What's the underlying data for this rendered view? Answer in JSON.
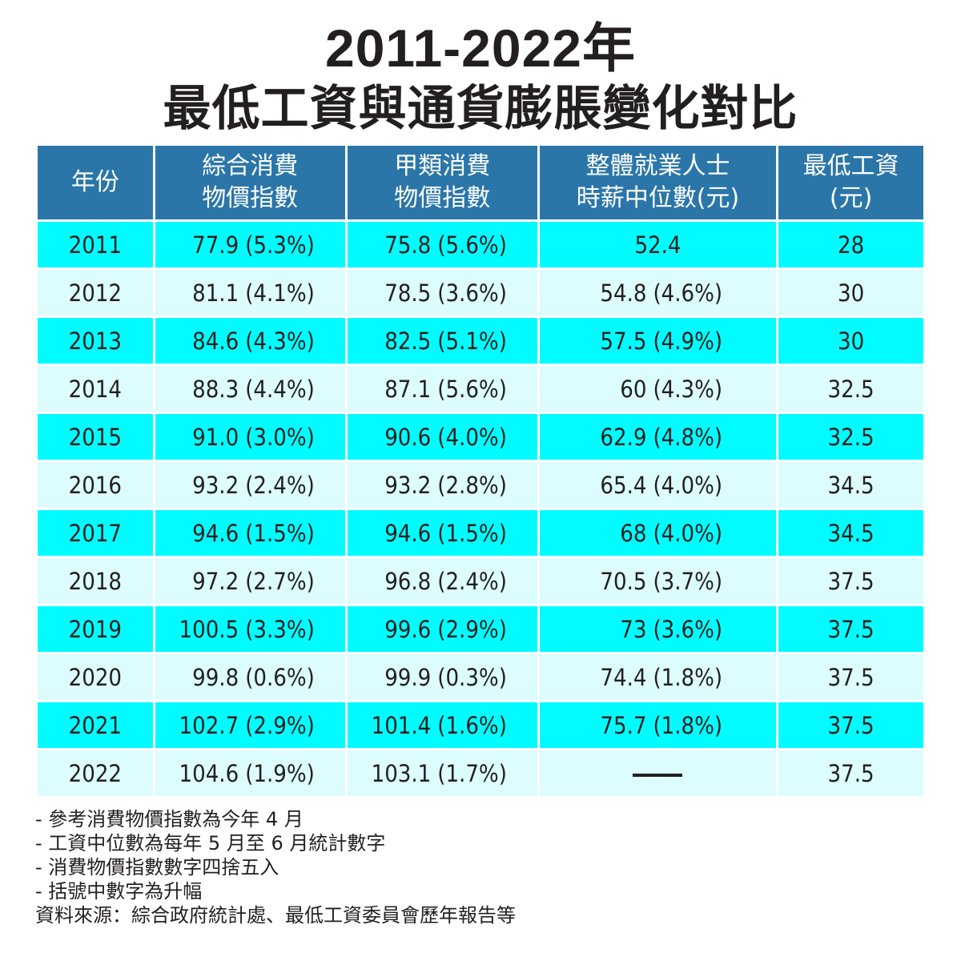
{
  "header": {
    "title_line1": "2011-2022年",
    "title_line2": "最低工資與通貨膨脹變化對比"
  },
  "table": {
    "columns": [
      {
        "line1": "年份",
        "line2": ""
      },
      {
        "line1": "綜合消費",
        "line2": "物價指數"
      },
      {
        "line1": "甲類消費",
        "line2": "物價指數"
      },
      {
        "line1": "整體就業人士",
        "line2": "時薪中位數(元)"
      },
      {
        "line1": "最低工資",
        "line2": "(元)"
      }
    ],
    "rows": [
      {
        "year": "2011",
        "ccpi": "77.9",
        "ccpi_pct": "(5.3%)",
        "acpi": "75.8",
        "acpi_pct": "(5.6%)",
        "median": "52.4",
        "median_pct": "",
        "min_wage": "28"
      },
      {
        "year": "2012",
        "ccpi": "81.1",
        "ccpi_pct": "(4.1%)",
        "acpi": "78.5",
        "acpi_pct": "(3.6%)",
        "median": "54.8",
        "median_pct": "(4.6%)",
        "min_wage": "30"
      },
      {
        "year": "2013",
        "ccpi": "84.6",
        "ccpi_pct": "(4.3%)",
        "acpi": "82.5",
        "acpi_pct": "(5.1%)",
        "median": "57.5",
        "median_pct": "(4.9%)",
        "min_wage": "30"
      },
      {
        "year": "2014",
        "ccpi": "88.3",
        "ccpi_pct": "(4.4%)",
        "acpi": "87.1",
        "acpi_pct": "(5.6%)",
        "median": "60",
        "median_pct": "(4.3%)",
        "min_wage": "32.5"
      },
      {
        "year": "2015",
        "ccpi": "91.0",
        "ccpi_pct": "(3.0%)",
        "acpi": "90.6",
        "acpi_pct": "(4.0%)",
        "median": "62.9",
        "median_pct": "(4.8%)",
        "min_wage": "32.5"
      },
      {
        "year": "2016",
        "ccpi": "93.2",
        "ccpi_pct": "(2.4%)",
        "acpi": "93.2",
        "acpi_pct": "(2.8%)",
        "median": "65.4",
        "median_pct": "(4.0%)",
        "min_wage": "34.5"
      },
      {
        "year": "2017",
        "ccpi": "94.6",
        "ccpi_pct": "(1.5%)",
        "acpi": "94.6",
        "acpi_pct": "(1.5%)",
        "median": "68",
        "median_pct": "(4.0%)",
        "min_wage": "34.5"
      },
      {
        "year": "2018",
        "ccpi": "97.2",
        "ccpi_pct": "(2.7%)",
        "acpi": "96.8",
        "acpi_pct": "(2.4%)",
        "median": "70.5",
        "median_pct": "(3.7%)",
        "min_wage": "37.5"
      },
      {
        "year": "2019",
        "ccpi": "100.5",
        "ccpi_pct": "(3.3%)",
        "acpi": "99.6",
        "acpi_pct": "(2.9%)",
        "median": "73",
        "median_pct": "(3.6%)",
        "min_wage": "37.5"
      },
      {
        "year": "2020",
        "ccpi": "99.8",
        "ccpi_pct": "(0.6%)",
        "acpi": "99.9",
        "acpi_pct": "(0.3%)",
        "median": "74.4",
        "median_pct": "(1.8%)",
        "min_wage": "37.5"
      },
      {
        "year": "2021",
        "ccpi": "102.7",
        "ccpi_pct": "(2.9%)",
        "acpi": "101.4",
        "acpi_pct": "(1.6%)",
        "median": "75.7",
        "median_pct": "(1.8%)",
        "min_wage": "37.5"
      },
      {
        "year": "2022",
        "ccpi": "104.6",
        "ccpi_pct": "(1.9%)",
        "acpi": "103.1",
        "acpi_pct": "(1.7%)",
        "median": "",
        "median_pct": "",
        "min_wage": "37.5"
      }
    ]
  },
  "notes": [
    "- 參考消費物價指數為今年 4 月",
    "- 工資中位數為每年 5 月至 6 月統計數字",
    "- 消費物價指數數字四捨五入",
    "- 括號中數字為升幅",
    "資料來源：綜合政府統計處、最低工資委員會歷年報告等"
  ],
  "colors": {
    "header_bg": "#2b76a9",
    "row_dark": "#00fcfe",
    "row_light": "#dcfcfd",
    "text": "#231f20"
  },
  "chart_data": {
    "type": "table",
    "title": "2011-2022年 最低工資與通貨膨脹變化對比",
    "columns": [
      "年份",
      "綜合消費物價指數",
      "甲類消費物價指數",
      "整體就業人士時薪中位數(元)",
      "最低工資(元)"
    ],
    "rows": [
      [
        "2011",
        "77.9 (5.3%)",
        "75.8 (5.6%)",
        "52.4",
        "28"
      ],
      [
        "2012",
        "81.1 (4.1%)",
        "78.5 (3.6%)",
        "54.8 (4.6%)",
        "30"
      ],
      [
        "2013",
        "84.6 (4.3%)",
        "82.5 (5.1%)",
        "57.5 (4.9%)",
        "30"
      ],
      [
        "2014",
        "88.3 (4.4%)",
        "87.1 (5.6%)",
        "60 (4.3%)",
        "32.5"
      ],
      [
        "2015",
        "91.0 (3.0%)",
        "90.6 (4.0%)",
        "62.9 (4.8%)",
        "32.5"
      ],
      [
        "2016",
        "93.2 (2.4%)",
        "93.2 (2.8%)",
        "65.4 (4.0%)",
        "34.5"
      ],
      [
        "2017",
        "94.6 (1.5%)",
        "94.6 (1.5%)",
        "68 (4.0%)",
        "34.5"
      ],
      [
        "2018",
        "97.2 (2.7%)",
        "96.8 (2.4%)",
        "70.5 (3.7%)",
        "37.5"
      ],
      [
        "2019",
        "100.5 (3.3%)",
        "99.6 (2.9%)",
        "73 (3.6%)",
        "37.5"
      ],
      [
        "2020",
        "99.8 (0.6%)",
        "99.9 (0.3%)",
        "74.4 (1.8%)",
        "37.5"
      ],
      [
        "2021",
        "102.7 (2.9%)",
        "101.4 (1.6%)",
        "75.7 (1.8%)",
        "37.5"
      ],
      [
        "2022",
        "104.6 (1.9%)",
        "103.1 (1.7%)",
        "—",
        "37.5"
      ]
    ],
    "series": [
      {
        "name": "綜合消費物價指數",
        "values": [
          77.9,
          81.1,
          84.6,
          88.3,
          91.0,
          93.2,
          94.6,
          97.2,
          100.5,
          99.8,
          102.7,
          104.6
        ],
        "change_pct": [
          5.3,
          4.1,
          4.3,
          4.4,
          3.0,
          2.4,
          1.5,
          2.7,
          3.3,
          0.6,
          2.9,
          1.9
        ]
      },
      {
        "name": "甲類消費物價指數",
        "values": [
          75.8,
          78.5,
          82.5,
          87.1,
          90.6,
          93.2,
          94.6,
          96.8,
          99.6,
          99.9,
          101.4,
          103.1
        ],
        "change_pct": [
          5.6,
          3.6,
          5.1,
          5.6,
          4.0,
          2.8,
          1.5,
          2.4,
          2.9,
          0.3,
          1.6,
          1.7
        ]
      },
      {
        "name": "整體就業人士時薪中位數(元)",
        "values": [
          52.4,
          54.8,
          57.5,
          60,
          62.9,
          65.4,
          68,
          70.5,
          73,
          74.4,
          75.7,
          null
        ],
        "change_pct": [
          null,
          4.6,
          4.9,
          4.3,
          4.8,
          4.0,
          4.0,
          3.7,
          3.6,
          1.8,
          1.8,
          null
        ]
      },
      {
        "name": "最低工資(元)",
        "values": [
          28,
          30,
          30,
          32.5,
          32.5,
          34.5,
          34.5,
          37.5,
          37.5,
          37.5,
          37.5,
          37.5
        ]
      }
    ],
    "categories": [
      "2011",
      "2012",
      "2013",
      "2014",
      "2015",
      "2016",
      "2017",
      "2018",
      "2019",
      "2020",
      "2021",
      "2022"
    ]
  }
}
